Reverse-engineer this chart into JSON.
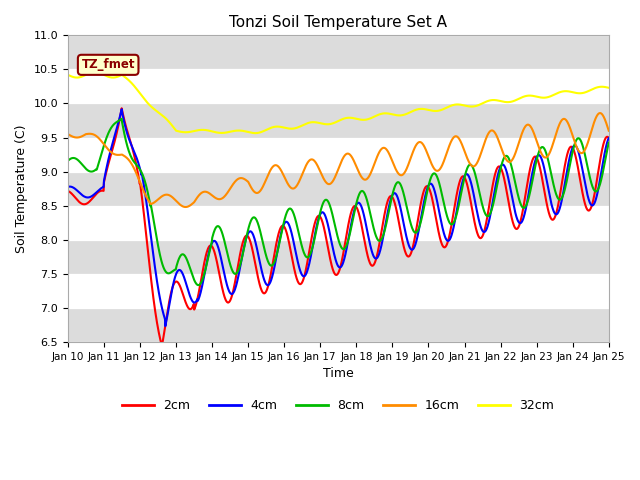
{
  "title": "Tonzi Soil Temperature Set A",
  "xlabel": "Time",
  "ylabel": "Soil Temperature (C)",
  "ylim": [
    6.5,
    11.0
  ],
  "xlim": [
    0,
    15
  ],
  "yticks": [
    6.5,
    7.0,
    7.5,
    8.0,
    8.5,
    9.0,
    9.5,
    10.0,
    10.5,
    11.0
  ],
  "xtick_labels": [
    "Jan 10",
    "Jan 11",
    "Jan 12",
    "Jan 13",
    "Jan 14",
    "Jan 15",
    "Jan 16",
    "Jan 17",
    "Jan 18",
    "Jan 19",
    "Jan 20",
    "Jan 21",
    "Jan 22",
    "Jan 23",
    "Jan 24",
    "Jan 25"
  ],
  "xtick_positions": [
    0,
    1,
    2,
    3,
    4,
    5,
    6,
    7,
    8,
    9,
    10,
    11,
    12,
    13,
    14,
    15
  ],
  "annotation_text": "TZ_fmet",
  "annotation_color": "#8B0000",
  "annotation_bg": "#FFFFCC",
  "annotation_border": "#8B0000",
  "series": [
    {
      "label": "2cm",
      "color": "#FF0000"
    },
    {
      "label": "4cm",
      "color": "#0000FF"
    },
    {
      "label": "8cm",
      "color": "#00BB00"
    },
    {
      "label": "16cm",
      "color": "#FF8C00"
    },
    {
      "label": "32cm",
      "color": "#FFFF00"
    }
  ],
  "bg_color": "#FFFFFF",
  "plot_bg_light": "#FFFFFF",
  "plot_bg_dark": "#DCDCDC",
  "band_colors": [
    "#DCDCDC",
    "#FFFFFF",
    "#DCDCDC",
    "#FFFFFF",
    "#DCDCDC",
    "#FFFFFF",
    "#DCDCDC",
    "#FFFFFF",
    "#DCDCDC"
  ]
}
